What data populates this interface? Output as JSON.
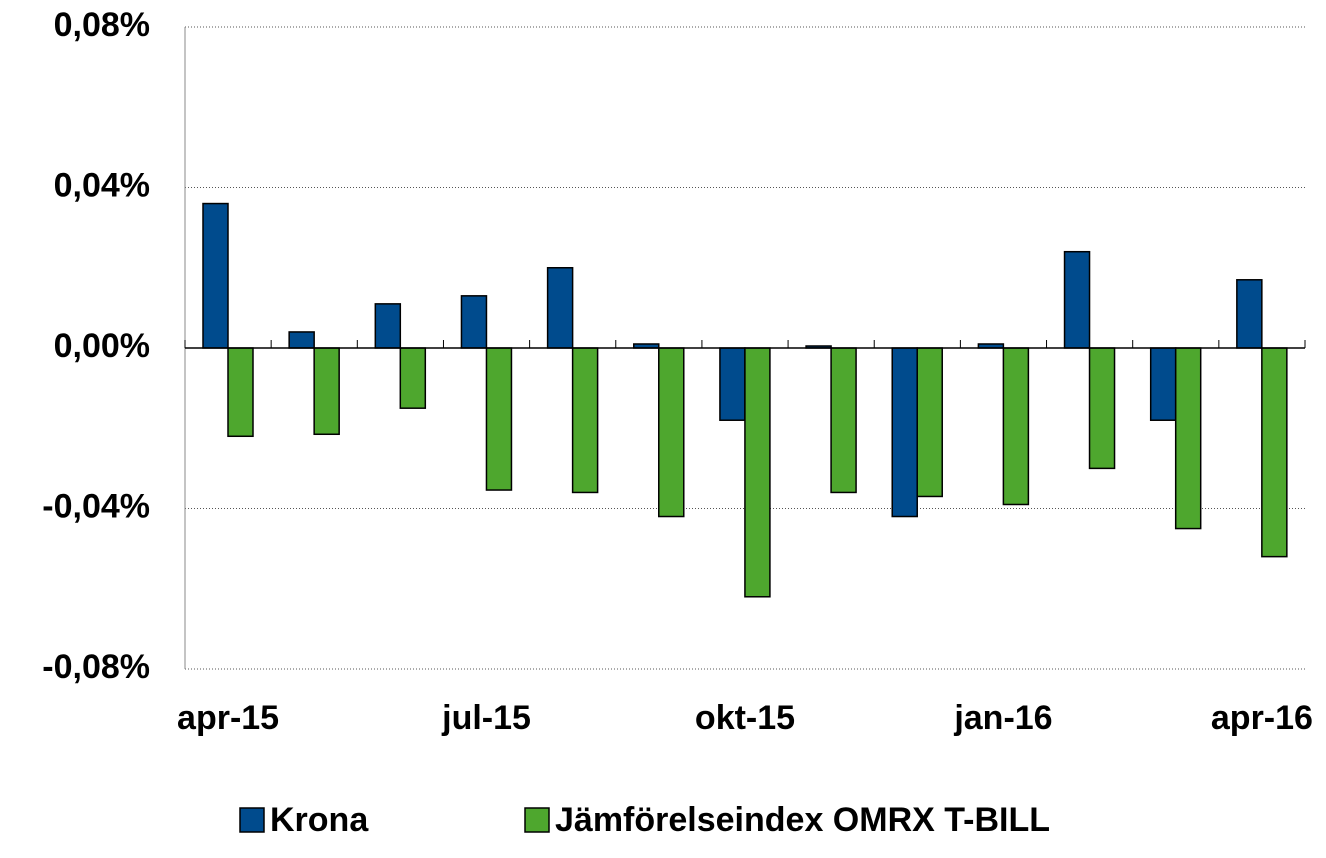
{
  "chart_data": {
    "type": "bar",
    "categories": [
      "apr-15",
      null,
      null,
      "jul-15",
      null,
      null,
      "okt-15",
      null,
      null,
      "jan-16",
      null,
      null,
      "apr-16"
    ],
    "series": [
      {
        "name": "Krona",
        "color": "#004b8d",
        "values": [
          0.036,
          0.004,
          0.011,
          0.013,
          0.02,
          0.001,
          -0.018,
          0.0005,
          -0.042,
          0.001,
          0.024,
          -0.018,
          0.017
        ]
      },
      {
        "name": "Jämförelseindex OMRX T-BILL",
        "color": "#4ea72e",
        "values": [
          -0.022,
          -0.0215,
          -0.015,
          -0.0354,
          -0.036,
          -0.042,
          -0.062,
          -0.036,
          -0.037,
          -0.039,
          -0.03,
          -0.045,
          -0.052
        ]
      }
    ],
    "ylim": [
      -0.08,
      0.08
    ],
    "yticks": [
      {
        "value": -0.08,
        "label": "-0,08%"
      },
      {
        "value": -0.04,
        "label": "-0,04%"
      },
      {
        "value": 0,
        "label": "0,00%"
      },
      {
        "value": 0.04,
        "label": "0,04%"
      },
      {
        "value": 0.08,
        "label": "0,08%"
      }
    ],
    "grid": true
  }
}
